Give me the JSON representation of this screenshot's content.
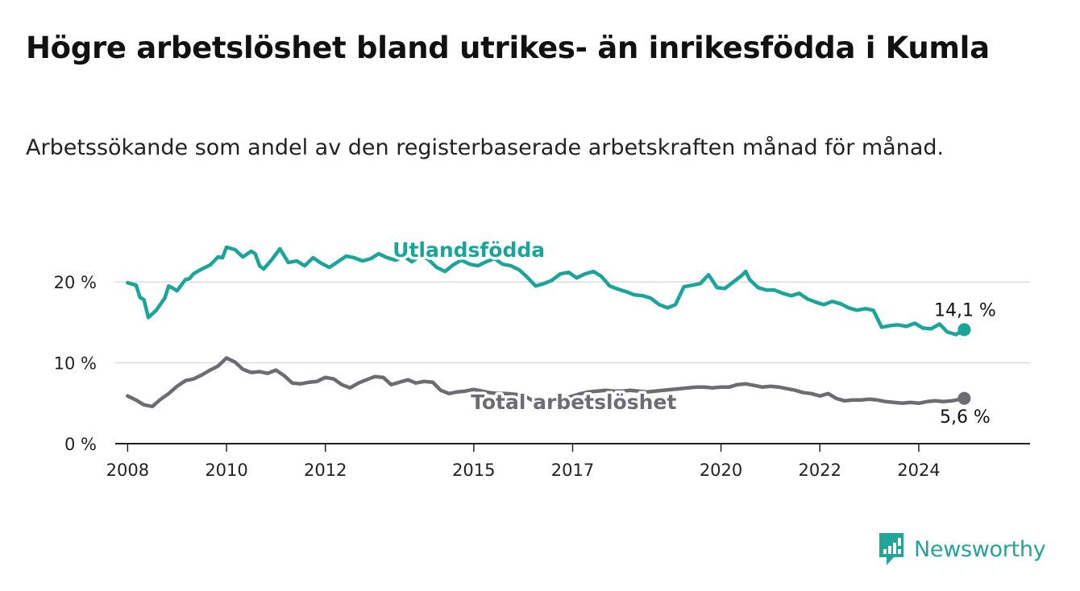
{
  "title": "Högre arbetslöshet bland utrikes- än inrikesfödda i Kumla",
  "subtitle": "Arbetssökande som andel av den registerbaserade arbetskraften månad för månad.",
  "brand": {
    "name": "Newsworthy",
    "color": "#23a49a"
  },
  "chart_data": {
    "type": "line",
    "title": "Högre arbetslöshet bland utrikes- än inrikesfödda i Kumla",
    "xlabel": "",
    "ylabel": "",
    "ylim": [
      0,
      25
    ],
    "xlim": [
      2007.75,
      2026.25
    ],
    "grid": true,
    "y_ticks": [
      {
        "value": 0,
        "label": "0 %"
      },
      {
        "value": 10,
        "label": "10 %"
      },
      {
        "value": 20,
        "label": "20 %"
      }
    ],
    "x_ticks": [
      {
        "value": 2008.0,
        "label": "2008"
      },
      {
        "value": 2010.0,
        "label": "2010"
      },
      {
        "value": 2012.0,
        "label": "2012"
      },
      {
        "value": 2015.0,
        "label": "2015"
      },
      {
        "value": 2017.0,
        "label": "2017"
      },
      {
        "value": 2020.0,
        "label": "2020"
      },
      {
        "value": 2022.0,
        "label": "2022"
      },
      {
        "value": 2024.0,
        "label": "2024"
      }
    ],
    "series": [
      {
        "name": "Utlandsfödda",
        "color": "#1aa59b",
        "end_label": "14,1 %",
        "x": [
          2008.0,
          2008.17,
          2008.25,
          2008.33,
          2008.42,
          2008.58,
          2008.75,
          2008.83,
          2008.92,
          2009.0,
          2009.17,
          2009.25,
          2009.33,
          2009.5,
          2009.67,
          2009.75,
          2009.83,
          2009.92,
          2010.0,
          2010.17,
          2010.33,
          2010.5,
          2010.58,
          2010.67,
          2010.75,
          2010.92,
          2011.08,
          2011.25,
          2011.42,
          2011.58,
          2011.75,
          2011.92,
          2012.08,
          2012.25,
          2012.42,
          2012.58,
          2012.75,
          2012.92,
          2013.08,
          2013.25,
          2013.42,
          2013.58,
          2013.75,
          2013.92,
          2014.08,
          2014.25,
          2014.42,
          2014.58,
          2014.75,
          2014.92,
          2015.08,
          2015.25,
          2015.42,
          2015.58,
          2015.75,
          2015.92,
          2016.08,
          2016.25,
          2016.42,
          2016.58,
          2016.75,
          2016.92,
          2017.08,
          2017.25,
          2017.42,
          2017.58,
          2017.75,
          2017.92,
          2018.08,
          2018.25,
          2018.42,
          2018.58,
          2018.75,
          2018.92,
          2019.08,
          2019.25,
          2019.42,
          2019.58,
          2019.75,
          2019.92,
          2020.08,
          2020.25,
          2020.42,
          2020.5,
          2020.58,
          2020.75,
          2020.92,
          2021.08,
          2021.25,
          2021.42,
          2021.58,
          2021.75,
          2021.92,
          2022.08,
          2022.25,
          2022.42,
          2022.58,
          2022.75,
          2022.92,
          2023.08,
          2023.25,
          2023.42,
          2023.58,
          2023.75,
          2023.92,
          2024.08,
          2024.25,
          2024.42,
          2024.58,
          2024.75,
          2024.92
        ],
        "y": [
          19.9,
          19.6,
          18.1,
          17.8,
          15.6,
          16.5,
          18.0,
          19.5,
          19.2,
          18.9,
          20.3,
          20.4,
          21.0,
          21.6,
          22.1,
          22.6,
          23.1,
          23.0,
          24.3,
          24.0,
          23.1,
          23.8,
          23.5,
          22.0,
          21.6,
          22.8,
          24.1,
          22.4,
          22.6,
          22.0,
          23.0,
          22.3,
          21.8,
          22.5,
          23.2,
          23.0,
          22.6,
          22.9,
          23.5,
          23.0,
          22.7,
          23.2,
          22.5,
          23.3,
          22.8,
          21.8,
          21.3,
          22.1,
          22.7,
          22.2,
          22.0,
          22.5,
          22.9,
          22.2,
          22.0,
          21.5,
          20.6,
          19.5,
          19.8,
          20.2,
          21.0,
          21.2,
          20.5,
          21.0,
          21.3,
          20.7,
          19.5,
          19.1,
          18.8,
          18.4,
          18.3,
          18.0,
          17.2,
          16.8,
          17.2,
          19.4,
          19.6,
          19.8,
          20.9,
          19.3,
          19.2,
          20.0,
          20.8,
          21.3,
          20.3,
          19.3,
          19.0,
          19.0,
          18.6,
          18.3,
          18.6,
          17.9,
          17.5,
          17.2,
          17.6,
          17.3,
          16.8,
          16.5,
          16.7,
          16.5,
          14.4,
          14.6,
          14.7,
          14.5,
          14.9,
          14.3,
          14.2,
          14.8,
          13.8,
          13.5,
          14.1
        ]
      },
      {
        "name": "Total arbetslöshet",
        "color": "#6d6c73",
        "end_label": "5,6 %",
        "x": [
          2008.0,
          2008.17,
          2008.33,
          2008.5,
          2008.67,
          2008.83,
          2009.0,
          2009.17,
          2009.33,
          2009.5,
          2009.67,
          2009.83,
          2010.0,
          2010.17,
          2010.33,
          2010.5,
          2010.67,
          2010.83,
          2011.0,
          2011.17,
          2011.33,
          2011.5,
          2011.67,
          2011.83,
          2012.0,
          2012.17,
          2012.33,
          2012.5,
          2012.67,
          2012.83,
          2013.0,
          2013.17,
          2013.33,
          2013.5,
          2013.67,
          2013.83,
          2014.0,
          2014.17,
          2014.33,
          2014.5,
          2014.67,
          2014.83,
          2015.0,
          2015.17,
          2015.33,
          2015.5,
          2015.67,
          2015.83,
          2016.0,
          2016.17,
          2016.33,
          2016.5,
          2016.67,
          2016.83,
          2017.0,
          2017.17,
          2017.33,
          2017.5,
          2017.67,
          2017.83,
          2018.0,
          2018.17,
          2018.33,
          2018.5,
          2018.67,
          2018.83,
          2019.0,
          2019.17,
          2019.33,
          2019.5,
          2019.67,
          2019.83,
          2020.0,
          2020.17,
          2020.33,
          2020.5,
          2020.67,
          2020.83,
          2021.0,
          2021.17,
          2021.33,
          2021.5,
          2021.67,
          2021.83,
          2022.0,
          2022.17,
          2022.33,
          2022.5,
          2022.67,
          2022.83,
          2023.0,
          2023.17,
          2023.33,
          2023.5,
          2023.67,
          2023.83,
          2024.0,
          2024.17,
          2024.33,
          2024.5,
          2024.67,
          2024.92
        ],
        "y": [
          5.9,
          5.4,
          4.8,
          4.6,
          5.5,
          6.2,
          7.1,
          7.8,
          8.0,
          8.5,
          9.1,
          9.6,
          10.6,
          10.1,
          9.2,
          8.8,
          8.9,
          8.7,
          9.1,
          8.4,
          7.5,
          7.4,
          7.6,
          7.7,
          8.2,
          8.0,
          7.3,
          6.9,
          7.5,
          7.9,
          8.3,
          8.2,
          7.3,
          7.6,
          7.9,
          7.5,
          7.7,
          7.6,
          6.6,
          6.2,
          6.4,
          6.5,
          6.7,
          6.5,
          6.3,
          6.2,
          6.2,
          6.1,
          6.0,
          5.4,
          5.3,
          5.4,
          5.4,
          5.6,
          5.9,
          6.2,
          6.4,
          6.5,
          6.6,
          6.5,
          6.5,
          6.6,
          6.5,
          6.4,
          6.5,
          6.6,
          6.7,
          6.8,
          6.9,
          7.0,
          7.0,
          6.9,
          7.0,
          7.0,
          7.3,
          7.4,
          7.2,
          7.0,
          7.1,
          7.0,
          6.8,
          6.6,
          6.3,
          6.2,
          5.9,
          6.2,
          5.6,
          5.3,
          5.4,
          5.4,
          5.5,
          5.4,
          5.2,
          5.1,
          5.0,
          5.1,
          5.0,
          5.2,
          5.3,
          5.2,
          5.3,
          5.6
        ]
      }
    ],
    "annotations": [
      {
        "text": "Utlandsfödda",
        "series": 0,
        "x": 2014.9,
        "y": 24.1
      },
      {
        "text": "Total arbetslöshet",
        "series": 1,
        "x": 2017.02,
        "y": 5.3
      }
    ]
  }
}
